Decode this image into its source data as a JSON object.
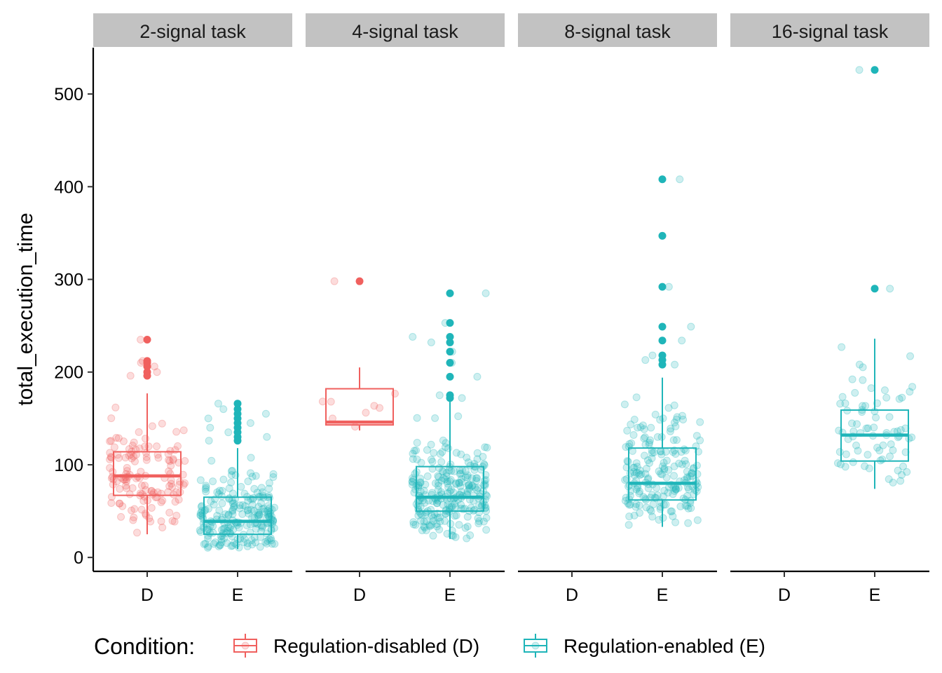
{
  "chart_data": {
    "type": "box",
    "ylabel": "total_execution_time",
    "xlabel": "",
    "ylim": [
      -15,
      550
    ],
    "y_ticks": [
      0,
      100,
      200,
      300,
      400,
      500
    ],
    "categories": [
      "D",
      "E"
    ],
    "grid": false,
    "legend": {
      "title": "Condition:",
      "placement": "bottom",
      "items": [
        {
          "key": "D",
          "label": "Regulation-disabled (D)",
          "color": "#F0605E"
        },
        {
          "key": "E",
          "label": "Regulation-enabled (E)",
          "color": "#1FB5B9"
        }
      ]
    },
    "panels": [
      {
        "title": "2-signal task",
        "boxes": [
          {
            "category": "D",
            "q1": 67,
            "median": 88,
            "q3": 114,
            "whisker_low": 25,
            "whisker_high": 177,
            "n_points": 140,
            "outliers": [
              196,
              200,
              206,
              210,
              212,
              235
            ]
          },
          {
            "category": "E",
            "q1": 25,
            "median": 39,
            "q3": 65,
            "whisker_low": 9,
            "whisker_high": 118,
            "n_points": 220,
            "outliers": [
              126,
              130,
              135,
              140,
              145,
              150,
              155,
              160,
              166
            ]
          }
        ]
      },
      {
        "title": "4-signal task",
        "boxes": [
          {
            "category": "D",
            "q1": 143,
            "median": 146,
            "q3": 182,
            "whisker_low": 137,
            "whisker_high": 205,
            "n_points": 8,
            "outliers": [
              298
            ]
          },
          {
            "category": "E",
            "q1": 50,
            "median": 65,
            "q3": 98,
            "whisker_low": 20,
            "whisker_high": 168,
            "n_points": 260,
            "outliers": [
              172,
              175,
              195,
              210,
              222,
              232,
              238,
              253,
              285
            ]
          }
        ]
      },
      {
        "title": "8-signal task",
        "boxes": [
          {
            "category": "D",
            "q1": null,
            "median": null,
            "q3": null,
            "whisker_low": null,
            "whisker_high": null,
            "n_points": 0,
            "outliers": []
          },
          {
            "category": "E",
            "q1": 62,
            "median": 80,
            "q3": 118,
            "whisker_low": 33,
            "whisker_high": 194,
            "n_points": 200,
            "outliers": [
              208,
              213,
              218,
              234,
              249,
              292,
              347,
              408
            ]
          }
        ]
      },
      {
        "title": "16-signal task",
        "boxes": [
          {
            "category": "D",
            "q1": null,
            "median": null,
            "q3": null,
            "whisker_low": null,
            "whisker_high": null,
            "n_points": 0,
            "outliers": []
          },
          {
            "category": "E",
            "q1": 104,
            "median": 132,
            "q3": 159,
            "whisker_low": 74,
            "whisker_high": 236,
            "n_points": 75,
            "outliers": [
              290,
              526
            ]
          }
        ]
      }
    ]
  }
}
